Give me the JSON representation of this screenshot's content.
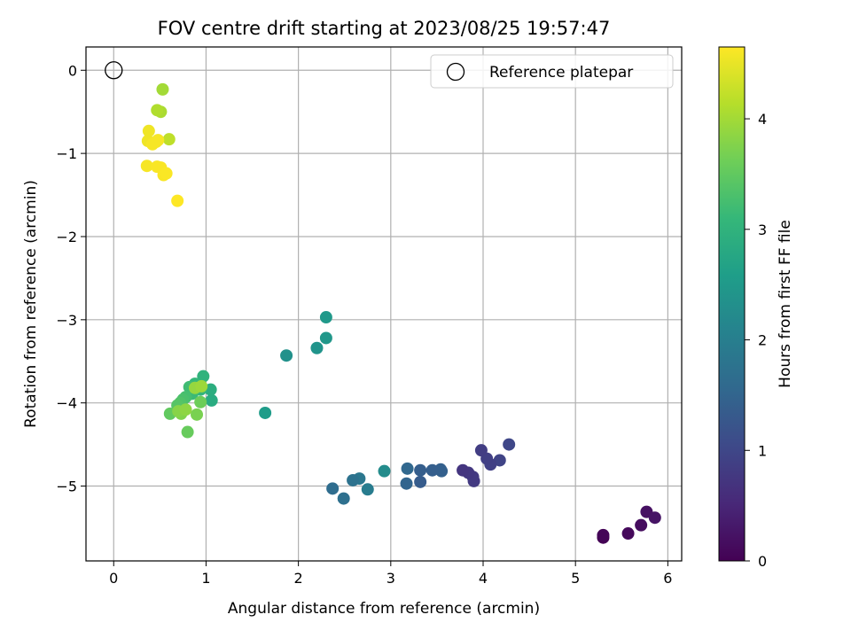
{
  "chart_data": {
    "type": "scatter",
    "title": "FOV centre drift starting at 2023/08/25 19:57:47",
    "xlabel": "Angular distance from reference (arcmin)",
    "ylabel": "Rotation from reference (arcmin)",
    "xlim": [
      -0.3,
      6.15
    ],
    "ylim": [
      -5.9,
      0.28
    ],
    "xticks": [
      "0",
      "1",
      "2",
      "3",
      "4",
      "5",
      "6"
    ],
    "yticks": [
      "0",
      "−1",
      "−2",
      "−3",
      "−4",
      "−5"
    ],
    "grid": true,
    "legend": {
      "placement": "top-right",
      "entries": [
        "Reference platepar"
      ]
    },
    "reference_point": {
      "x": 0,
      "y": 0,
      "marker": "open-circle"
    },
    "colorbar": {
      "label": "Hours from first FF file",
      "min": 0,
      "max": 4.65,
      "ticks": [
        "0",
        "1",
        "2",
        "3",
        "4"
      ],
      "colormap": "viridis"
    },
    "colormap_stops": [
      "#440154",
      "#482878",
      "#3e4989",
      "#31688e",
      "#26828e",
      "#1f9e89",
      "#35b779",
      "#6ece58",
      "#b5de2b",
      "#fde725"
    ],
    "series": [
      {
        "x": [
          5.3,
          5.3,
          5.57,
          5.71,
          5.77,
          5.86,
          4.28,
          4.18,
          4.08,
          4.04,
          3.98,
          3.9,
          3.89,
          3.84,
          3.78,
          3.55,
          3.54,
          3.45,
          3.32,
          3.32,
          3.18,
          3.17,
          2.93,
          2.75,
          2.66,
          2.59,
          2.49,
          2.37,
          2.3,
          2.3,
          2.2,
          1.87,
          1.64,
          1.06,
          1.05,
          0.97,
          0.94,
          0.88,
          0.85,
          0.82,
          0.78,
          0.75,
          0.72,
          0.69,
          0.61,
          0.8,
          0.94,
          0.9,
          0.73,
          0.7,
          0.78,
          0.88,
          0.95,
          0.53,
          0.51,
          0.47,
          0.6,
          0.38,
          0.37,
          0.48,
          0.46,
          0.42,
          0.36,
          0.47,
          0.51,
          0.54,
          0.57,
          0.69
        ],
        "y": [
          -5.62,
          -5.59,
          -5.57,
          -5.47,
          -5.31,
          -5.38,
          -4.5,
          -4.69,
          -4.74,
          -4.67,
          -4.57,
          -4.94,
          -4.89,
          -4.84,
          -4.81,
          -4.82,
          -4.8,
          -4.81,
          -4.81,
          -4.95,
          -4.79,
          -4.97,
          -4.82,
          -5.04,
          -4.91,
          -4.93,
          -5.15,
          -5.03,
          -2.97,
          -3.22,
          -3.34,
          -3.43,
          -4.12,
          -3.97,
          -3.84,
          -3.68,
          -3.84,
          -3.77,
          -3.89,
          -3.81,
          -3.93,
          -3.96,
          -4.0,
          -4.03,
          -4.13,
          -4.35,
          -3.99,
          -4.14,
          -4.13,
          -4.1,
          -4.08,
          -3.82,
          -3.8,
          -0.23,
          -0.5,
          -0.48,
          -0.83,
          -0.73,
          -0.85,
          -0.84,
          -0.86,
          -0.89,
          -1.15,
          -1.16,
          -1.17,
          -1.26,
          -1.24,
          -1.57
        ],
        "hours": [
          0.0,
          0.05,
          0.1,
          0.15,
          0.2,
          0.25,
          1.0,
          0.95,
          0.9,
          0.88,
          0.85,
          0.8,
          0.78,
          0.75,
          0.72,
          1.45,
          1.42,
          1.4,
          1.38,
          1.35,
          1.55,
          1.5,
          2.25,
          1.95,
          1.85,
          1.75,
          1.7,
          1.65,
          2.5,
          2.45,
          2.4,
          2.35,
          2.55,
          2.85,
          2.9,
          3.0,
          3.05,
          3.1,
          3.15,
          3.2,
          3.25,
          3.3,
          3.35,
          3.4,
          3.5,
          3.55,
          3.6,
          3.7,
          3.75,
          3.8,
          3.85,
          3.9,
          3.95,
          4.0,
          4.05,
          4.1,
          4.2,
          4.55,
          4.55,
          4.6,
          4.6,
          4.6,
          4.6,
          4.62,
          4.62,
          4.62,
          4.63,
          4.65
        ]
      }
    ]
  }
}
